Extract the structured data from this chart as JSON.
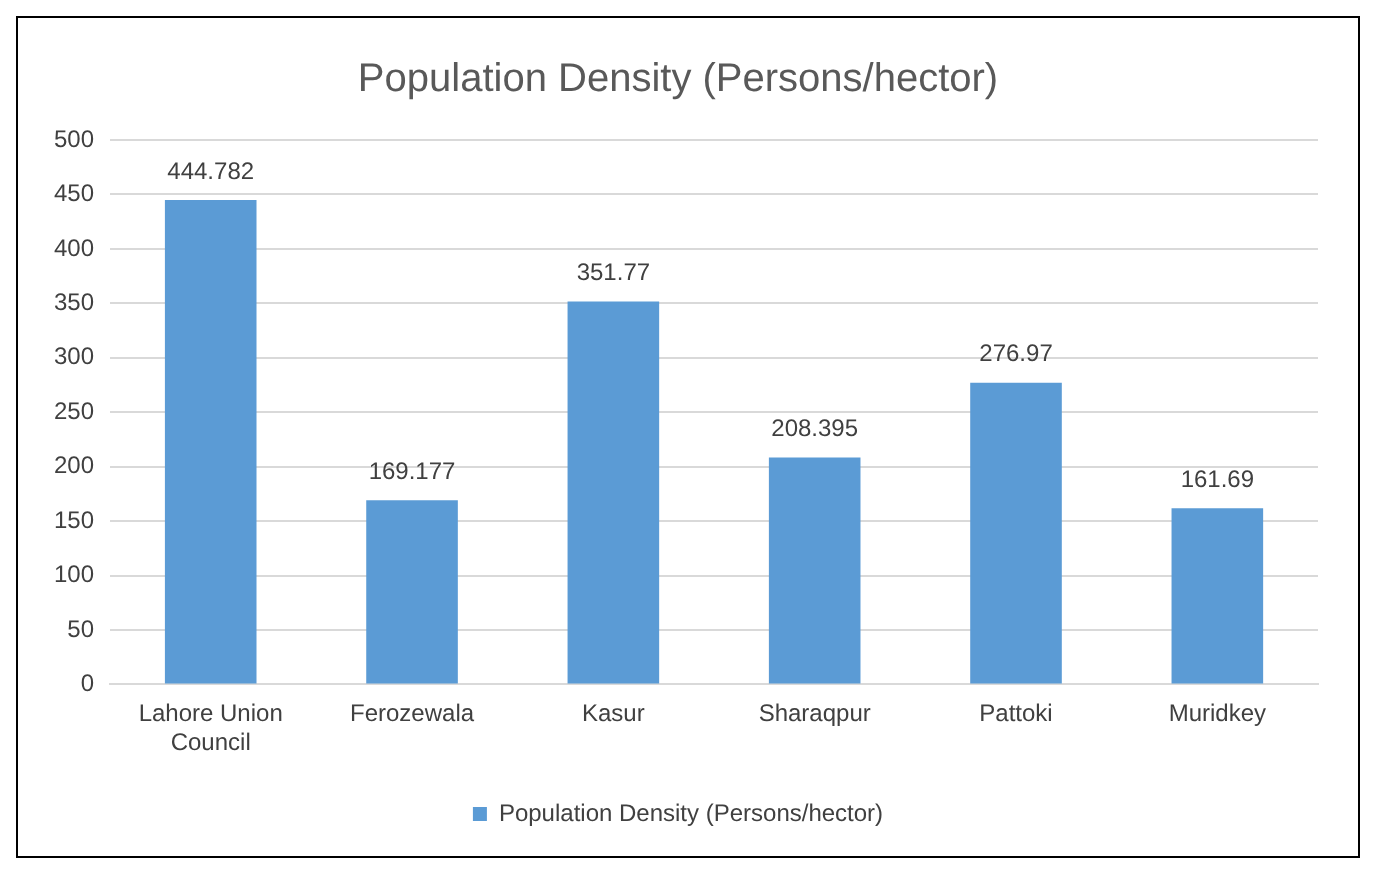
{
  "chart_data": {
    "type": "bar",
    "title": "Population Density (Persons/hector)",
    "categories": [
      "Lahore Union Council",
      "Ferozewala",
      "Kasur",
      "Sharaqpur",
      "Pattoki",
      "Muridkey"
    ],
    "series": [
      {
        "name": "Population Density (Persons/hector)",
        "color": "#5b9bd5",
        "values": [
          444.782,
          169.177,
          351.77,
          208.395,
          276.97,
          161.69
        ]
      }
    ],
    "ylim": [
      0,
      500
    ],
    "yticks": [
      0,
      50,
      100,
      150,
      200,
      250,
      300,
      350,
      400,
      450,
      500
    ],
    "grid": "y",
    "legend": "bottom",
    "data_labels": true
  }
}
